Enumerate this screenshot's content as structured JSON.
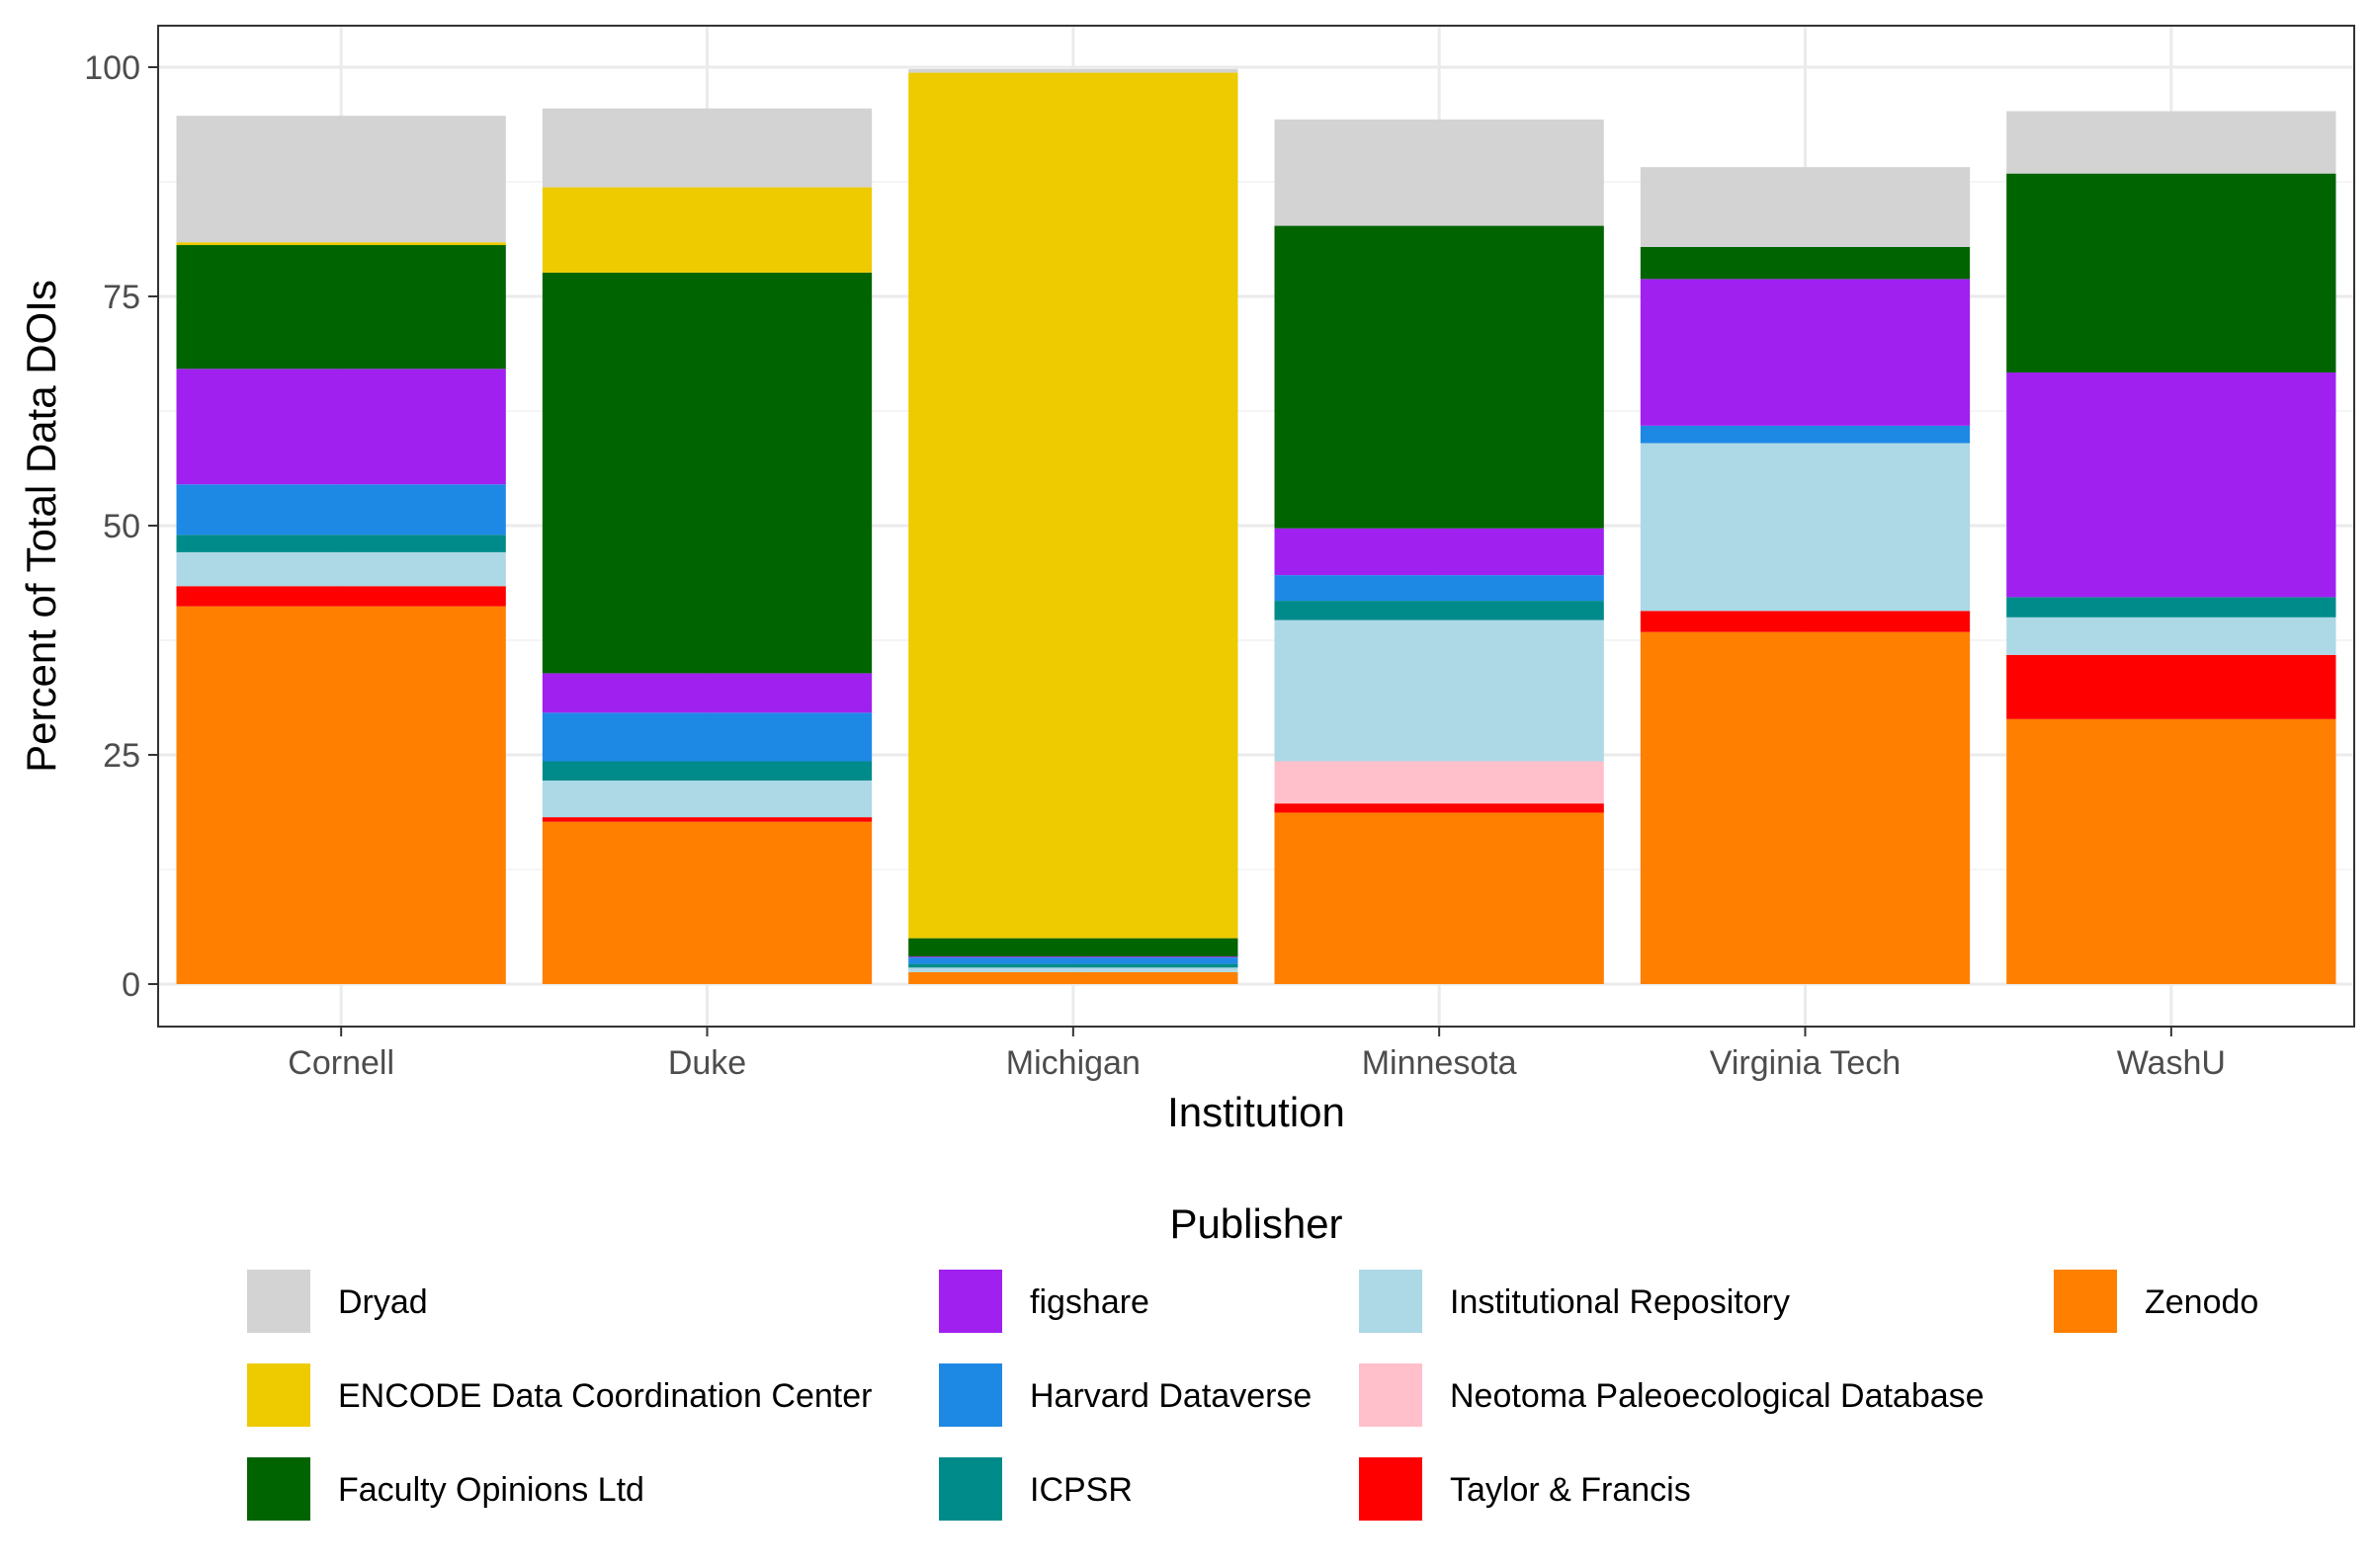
{
  "chart_data": {
    "type": "bar",
    "stacked": true,
    "xlabel": "Institution",
    "ylabel": "Percent of Total Data DOIs",
    "ylim": [
      -5,
      104
    ],
    "yticks": [
      0,
      25,
      50,
      75,
      100
    ],
    "grid": true,
    "legend_position": "bottom",
    "legend_title": "Publisher",
    "categories": [
      "Cornell",
      "Duke",
      "Michigan",
      "Minnesota",
      "Virginia Tech",
      "WashU"
    ],
    "series": [
      {
        "name": "Zenodo",
        "color": "#FF7F00",
        "values": [
          41.2,
          17.7,
          1.3,
          18.7,
          38.4,
          28.9
        ]
      },
      {
        "name": "Taylor & Francis",
        "color": "#FF0000",
        "values": [
          2.2,
          0.5,
          0.0,
          1.0,
          2.3,
          7.0
        ]
      },
      {
        "name": "Neotoma Paleoecological Database",
        "color": "#FFC0CB",
        "values": [
          0.0,
          0.0,
          0.0,
          4.6,
          0.0,
          0.0
        ]
      },
      {
        "name": "Institutional Repository",
        "color": "#ADD8E6",
        "values": [
          3.7,
          4.0,
          0.5,
          15.4,
          18.3,
          4.1
        ]
      },
      {
        "name": "ICPSR",
        "color": "#008B8B",
        "values": [
          1.9,
          2.1,
          0.4,
          2.1,
          0.0,
          2.2
        ]
      },
      {
        "name": "Harvard Dataverse",
        "color": "#1E88E5",
        "values": [
          5.5,
          5.3,
          0.7,
          2.8,
          1.9,
          0.0
        ]
      },
      {
        "name": "figshare",
        "color": "#A020F0",
        "values": [
          12.6,
          4.3,
          0.1,
          5.1,
          16.0,
          24.5
        ]
      },
      {
        "name": "Faculty Opinions Ltd",
        "color": "#006400",
        "values": [
          13.5,
          43.7,
          2.0,
          33.0,
          3.5,
          21.7
        ]
      },
      {
        "name": "ENCODE Data Coordination Center",
        "color": "#EECA00",
        "values": [
          0.3,
          9.3,
          94.4,
          0.0,
          0.0,
          0.0
        ]
      },
      {
        "name": "Dryad",
        "color": "#D3D3D3",
        "values": [
          13.8,
          8.6,
          0.4,
          11.6,
          8.7,
          6.8
        ]
      }
    ],
    "legend_order": [
      "Dryad",
      "ENCODE Data Coordination Center",
      "Faculty Opinions Ltd",
      "figshare",
      "Harvard Dataverse",
      "ICPSR",
      "Institutional Repository",
      "Neotoma Paleoecological Database",
      "Taylor & Francis",
      "Zenodo"
    ]
  }
}
